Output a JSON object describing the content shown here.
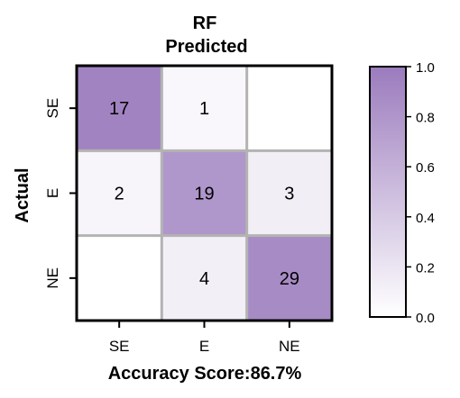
{
  "chart_data": {
    "type": "heatmap",
    "title": "RF",
    "subtitle": "Predicted",
    "ylabel": "Actual",
    "xlabel": "Accuracy Score:86.7%",
    "x_categories": [
      "SE",
      "E",
      "NE"
    ],
    "y_categories": [
      "SE",
      "E",
      "NE"
    ],
    "values": [
      [
        17,
        1,
        0
      ],
      [
        2,
        19,
        3
      ],
      [
        0,
        4,
        29
      ]
    ],
    "cell_labels": [
      [
        "17",
        "1",
        ""
      ],
      [
        "2",
        "19",
        "3"
      ],
      [
        "",
        "4",
        "29"
      ]
    ],
    "normalized": [
      [
        0.94,
        0.06,
        0.0
      ],
      [
        0.08,
        0.79,
        0.13
      ],
      [
        0.0,
        0.12,
        0.88
      ]
    ],
    "colorbar": {
      "range": [
        0.0,
        1.0
      ],
      "ticks": [
        "0.0",
        "0.2",
        "0.4",
        "0.6",
        "0.8",
        "1.0"
      ],
      "colors": [
        "#ffffff",
        "#9b7bbd"
      ]
    },
    "gridline_color": "#b3b3b3",
    "frame_color": "#000000"
  }
}
